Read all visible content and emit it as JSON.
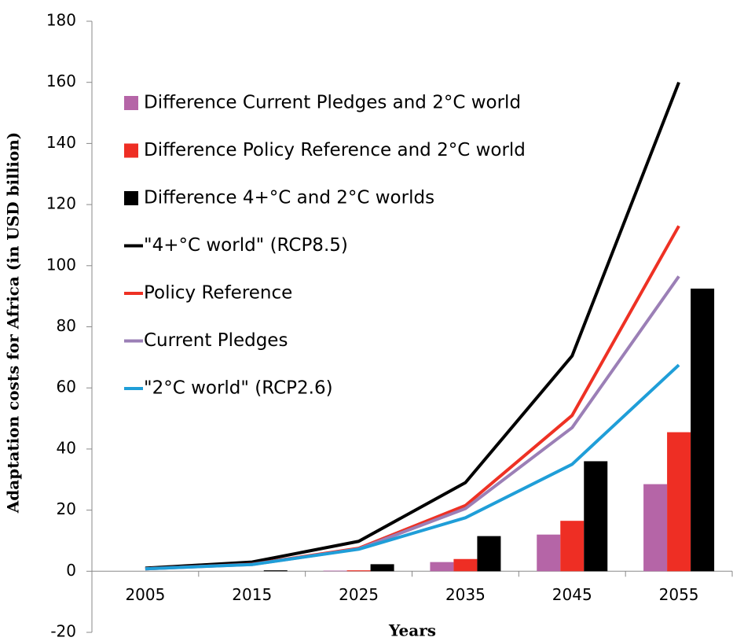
{
  "chart_data": {
    "type": "combo",
    "x_label": "Years",
    "y_label": "Adaptation costs for Africa (in USD billion)",
    "categories": [
      "2005",
      "2015",
      "2025",
      "2035",
      "2045",
      "2055"
    ],
    "ylim": [
      -20,
      180
    ],
    "yticks": [
      -20,
      0,
      20,
      40,
      60,
      80,
      100,
      120,
      140,
      160,
      180
    ],
    "series": [
      {
        "name": "Difference Current Pledges and 2°C world",
        "type": "bar",
        "color": "#b565a7",
        "values": [
          0,
          0,
          0.2,
          3,
          12,
          28.5
        ]
      },
      {
        "name": "Difference Policy Reference and 2°C world",
        "type": "bar",
        "color": "#ee2e24",
        "values": [
          0,
          0,
          0.3,
          4,
          16.5,
          45.5
        ]
      },
      {
        "name": "Difference 4+°C and 2°C worlds",
        "type": "bar",
        "color": "#000000",
        "values": [
          0,
          0.3,
          2.3,
          11.5,
          36,
          92.5
        ]
      },
      {
        "name": "\"4+°C world\" (RCP8.5)",
        "type": "line",
        "color": "#000000",
        "values": [
          1,
          3,
          9.8,
          29,
          70.5,
          160
        ]
      },
      {
        "name": "Policy Reference",
        "type": "line",
        "color": "#ee3124",
        "values": [
          0.8,
          2.3,
          7.5,
          21.5,
          51,
          113
        ]
      },
      {
        "name": "Current Pledges",
        "type": "line",
        "color": "#9b7fb6",
        "values": [
          0.8,
          2.2,
          7.3,
          20.5,
          47,
          96.5
        ]
      },
      {
        "name": "\"2°C world\" (RCP2.6)",
        "type": "line",
        "color": "#1f9ed8",
        "values": [
          0.8,
          2.2,
          7.2,
          17.5,
          35,
          67.5
        ]
      }
    ]
  }
}
